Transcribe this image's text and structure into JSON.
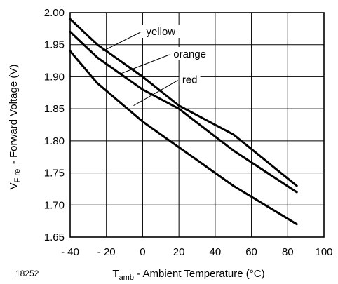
{
  "chart_data": {
    "type": "line",
    "figure_id": "18252",
    "xlabel": {
      "main": "T",
      "sub": "amb",
      "rest": " - Ambient Temperature (°C)"
    },
    "ylabel": {
      "main": "V",
      "sub": "F rel",
      "rest": " - Forward Voltage (V)"
    },
    "xlim": [
      -40,
      100
    ],
    "ylim": [
      1.65,
      2.0
    ],
    "xticks": [
      {
        "value": -40,
        "label": "- 40"
      },
      {
        "value": -20,
        "label": "- 20"
      },
      {
        "value": 0,
        "label": "0"
      },
      {
        "value": 20,
        "label": "20"
      },
      {
        "value": 40,
        "label": "40"
      },
      {
        "value": 60,
        "label": "60"
      },
      {
        "value": 80,
        "label": "80"
      },
      {
        "value": 100,
        "label": "100"
      }
    ],
    "yticks": [
      {
        "value": 1.65,
        "label": "1.65"
      },
      {
        "value": 1.7,
        "label": "1.70"
      },
      {
        "value": 1.75,
        "label": "1.75"
      },
      {
        "value": 1.8,
        "label": "1.80"
      },
      {
        "value": 1.85,
        "label": "1.85"
      },
      {
        "value": 1.9,
        "label": "1.90"
      },
      {
        "value": 1.95,
        "label": "1.95"
      },
      {
        "value": 2.0,
        "label": "2.00"
      }
    ],
    "grid": true,
    "series": [
      {
        "name": "yellow",
        "x": [
          -40,
          -25,
          0,
          20,
          50,
          85
        ],
        "y": [
          1.99,
          1.95,
          1.9,
          1.855,
          1.81,
          1.73
        ],
        "label_at": [
          10,
          1.965
        ],
        "leader_to": [
          -22,
          1.94
        ]
      },
      {
        "name": "orange",
        "x": [
          -40,
          -25,
          0,
          20,
          50,
          85
        ],
        "y": [
          1.97,
          1.93,
          1.88,
          1.85,
          1.785,
          1.72
        ],
        "label_at": [
          26,
          1.93
        ],
        "leader_to": [
          -12,
          1.905
        ]
      },
      {
        "name": "red",
        "x": [
          -40,
          -25,
          0,
          20,
          50,
          85
        ],
        "y": [
          1.94,
          1.89,
          1.83,
          1.79,
          1.73,
          1.67
        ],
        "label_at": [
          26,
          1.89
        ],
        "leader_to": [
          -5,
          1.855
        ]
      }
    ]
  }
}
